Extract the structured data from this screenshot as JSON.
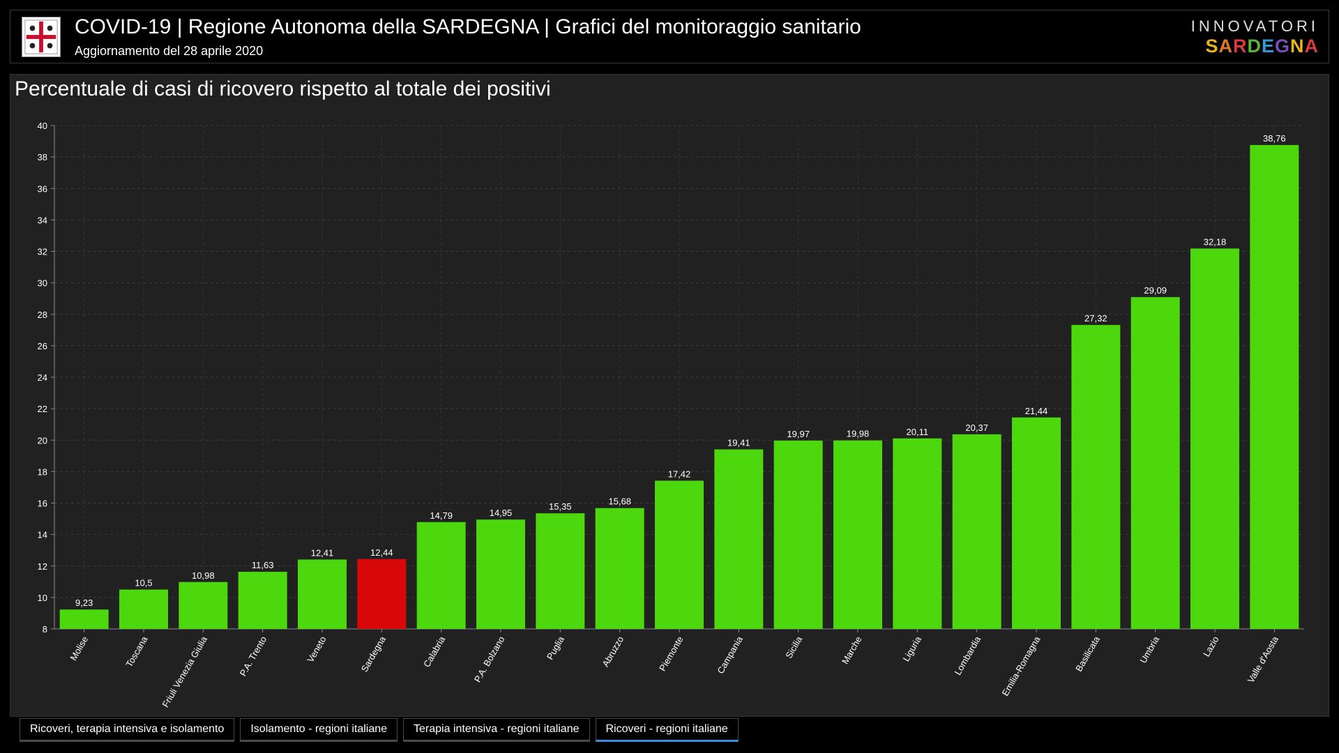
{
  "header": {
    "title": "COVID-19 | Regione Autonoma della SARDEGNA | Grafici del monitoraggio sanitario",
    "subtitle": "Aggiornamento del 28 aprile 2020",
    "brand_top": "INNOVATORI",
    "brand_bottom": "SARDEGNA",
    "brand_bottom_colors": [
      "#e8b520",
      "#e07a22",
      "#d93b3b",
      "#5ab33a",
      "#2e9ad6",
      "#7a4fb5",
      "#e8b520",
      "#d93b3b"
    ],
    "logo_icon": "sardinia-coat-of-arms-icon"
  },
  "tabs": [
    {
      "label": "Ricoveri, terapia intensiva e isolamento",
      "active": false
    },
    {
      "label": "Isolamento - regioni italiane",
      "active": false
    },
    {
      "label": "Terapia intensiva - regioni italiane",
      "active": false
    },
    {
      "label": "Ricoveri - regioni italiane",
      "active": true
    }
  ],
  "chart_data": {
    "type": "bar",
    "title": "Percentuale di casi di ricovero rispetto al totale dei positivi",
    "xlabel": "",
    "ylabel": "",
    "ylim": [
      8,
      40
    ],
    "yticks": [
      8,
      10,
      12,
      14,
      16,
      18,
      20,
      22,
      24,
      26,
      28,
      30,
      32,
      34,
      36,
      38,
      40
    ],
    "grid": true,
    "categories": [
      "Molise",
      "Toscana",
      "Friuli Venezia Giulia",
      "P.A. Trento",
      "Veneto",
      "Sardegna",
      "Calabria",
      "P.A. Bolzano",
      "Puglia",
      "Abruzzo",
      "Piemonte",
      "Campania",
      "Sicilia",
      "Marche",
      "Liguria",
      "Lombardia",
      "Emilia-Romagna",
      "Basilicata",
      "Umbria",
      "Lazio",
      "Valle d'Aosta"
    ],
    "values": [
      9.23,
      10.5,
      10.98,
      11.63,
      12.41,
      12.44,
      14.79,
      14.95,
      15.35,
      15.68,
      17.42,
      19.41,
      19.97,
      19.98,
      20.11,
      20.37,
      21.44,
      27.32,
      29.09,
      32.18,
      38.76
    ],
    "value_labels": [
      "9,23",
      "10,5",
      "10,98",
      "11,63",
      "12,41",
      "12,44",
      "14,79",
      "14,95",
      "15,35",
      "15,68",
      "17,42",
      "19,41",
      "19,97",
      "19,98",
      "20,11",
      "20,37",
      "21,44",
      "27,32",
      "29,09",
      "32,18",
      "38,76"
    ],
    "bar_color": "#4cd80c",
    "highlight_color": "#d80808",
    "highlight_category": "Sardegna"
  }
}
